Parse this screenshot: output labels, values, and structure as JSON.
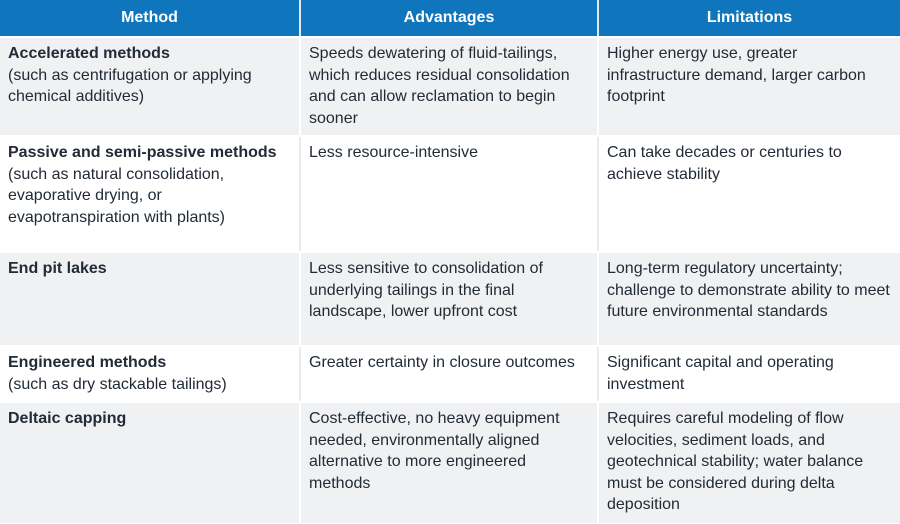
{
  "colors": {
    "header_bg": "#0f76bd",
    "header_text": "#ffffff",
    "stripe_row_bg": "#f0f1f2",
    "plain_row_bg": "#ffffff",
    "body_text": "#222b36",
    "divider_on_stripe": "#ffffff",
    "divider_on_plain": "#e8ebed"
  },
  "chart_data": {
    "type": "table",
    "columns": [
      "Method",
      "Advantages",
      "Limitations"
    ],
    "rows": [
      {
        "method_name": "Accelerated methods",
        "method_note": "(such as centrifugation or applying chemical additives)",
        "advantages": "Speeds dewatering of fluid-tailings, which reduces residual consolidation and can allow reclamation to begin sooner",
        "limitations": "Higher energy use, greater infrastructure demand, larger carbon footprint"
      },
      {
        "method_name": "Passive and semi-passive methods",
        "method_note": "(such as natural consolidation, evaporative drying, or evapotranspiration with plants)",
        "advantages": "Less resource-intensive",
        "limitations": "Can take decades or centuries to achieve stability"
      },
      {
        "method_name": "End pit lakes",
        "method_note": "",
        "advantages": "Less sensitive to consolidation of underlying tailings in the final landscape, lower upfront cost",
        "limitations": "Long-term regulatory uncertainty; challenge to demonstrate ability to meet future environmental standards"
      },
      {
        "method_name": "Engineered methods",
        "method_note": "(such as dry stackable tailings)",
        "advantages": "Greater certainty in closure outcomes",
        "limitations": "Significant capital and operating investment"
      },
      {
        "method_name": "Deltaic capping",
        "method_note": "",
        "advantages": "Cost-effective, no heavy equipment needed, environmentally aligned alternative to more engineered methods",
        "limitations": "Requires careful modeling of flow velocities, sediment loads, and geotechnical stability; water balance must be considered during delta deposition"
      }
    ]
  }
}
